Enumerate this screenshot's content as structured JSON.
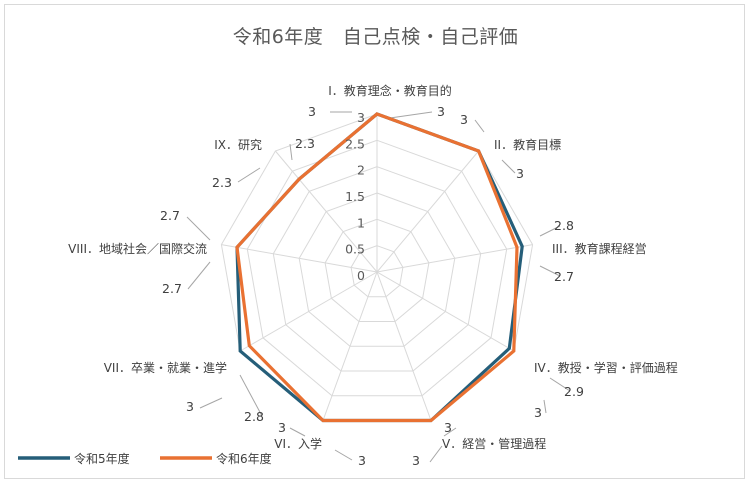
{
  "chart_data": {
    "type": "radar",
    "title": "令和6年度　自己点検・自己評価",
    "categories": [
      "I．教育理念・教育目的",
      "II．教育目標",
      "III．教育課程経営",
      "IV．教授・学習・評価過程",
      "V．経営・管理過程",
      "VI．入学",
      "VII．卒業・就業・進学",
      "VIII．地域社会／国際交流",
      "IX．研究"
    ],
    "series": [
      {
        "name": "令和5年度",
        "values": [
          3,
          3,
          2.8,
          2.9,
          3,
          3,
          3,
          2.7,
          2.3
        ],
        "color": "#255e79"
      },
      {
        "name": "令和6年度",
        "values": [
          3,
          3,
          2.7,
          3,
          3,
          3,
          2.8,
          2.7,
          2.3
        ],
        "color": "#e97132"
      }
    ],
    "rticks": [
      "0",
      "0.5",
      "1",
      "1.5",
      "2",
      "2.5",
      "3"
    ],
    "rlim": [
      0,
      3
    ],
    "grid": true,
    "legend": "bottom-left"
  }
}
